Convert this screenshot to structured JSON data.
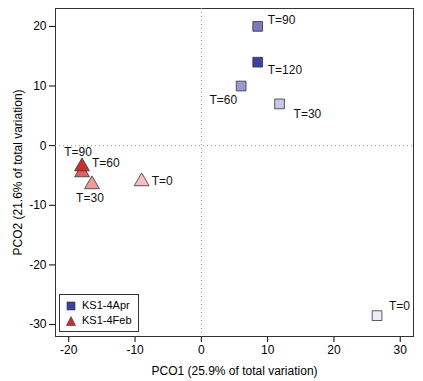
{
  "chart_data": {
    "type": "scatter",
    "xlabel": "PCO1 (25.9% of total variation)",
    "ylabel": "PCO2 (21.6% of total variation)",
    "xlim": [
      -22,
      32
    ],
    "ylim": [
      -32,
      23
    ],
    "xticks": [
      -20,
      -10,
      0,
      10,
      20,
      30
    ],
    "yticks": [
      -30,
      -20,
      -10,
      0,
      10,
      20
    ],
    "reference_lines": [
      {
        "axis": "x",
        "value": 0
      },
      {
        "axis": "y",
        "value": 0
      }
    ],
    "legend": "bottom-left",
    "series": [
      {
        "name": "KS1-4Apr",
        "color": "#3a44a0",
        "marker": "square",
        "labels": [
          "T=0",
          "T=30",
          "T=60",
          "T=90",
          "T=120"
        ],
        "x": [
          26.5,
          11.8,
          6,
          8.5,
          8.5
        ],
        "y": [
          -28.5,
          7,
          10,
          20,
          14
        ],
        "colors": [
          "#ececf6",
          "#c8c8e6",
          "#9a9ad0",
          "#7a7ac0",
          "#3a44a0"
        ]
      },
      {
        "name": "KS1-4Feb",
        "color": "#c83030",
        "marker": "triangle",
        "labels": [
          "T=0",
          "T=30",
          "T=60",
          "T=90"
        ],
        "x": [
          -9,
          -16.5,
          -18,
          -18
        ],
        "y": [
          -6,
          -6.5,
          -4.5,
          -3.5
        ],
        "colors": [
          "#f4c0c0",
          "#ee9a9a",
          "#e06060",
          "#c83030"
        ]
      }
    ]
  }
}
